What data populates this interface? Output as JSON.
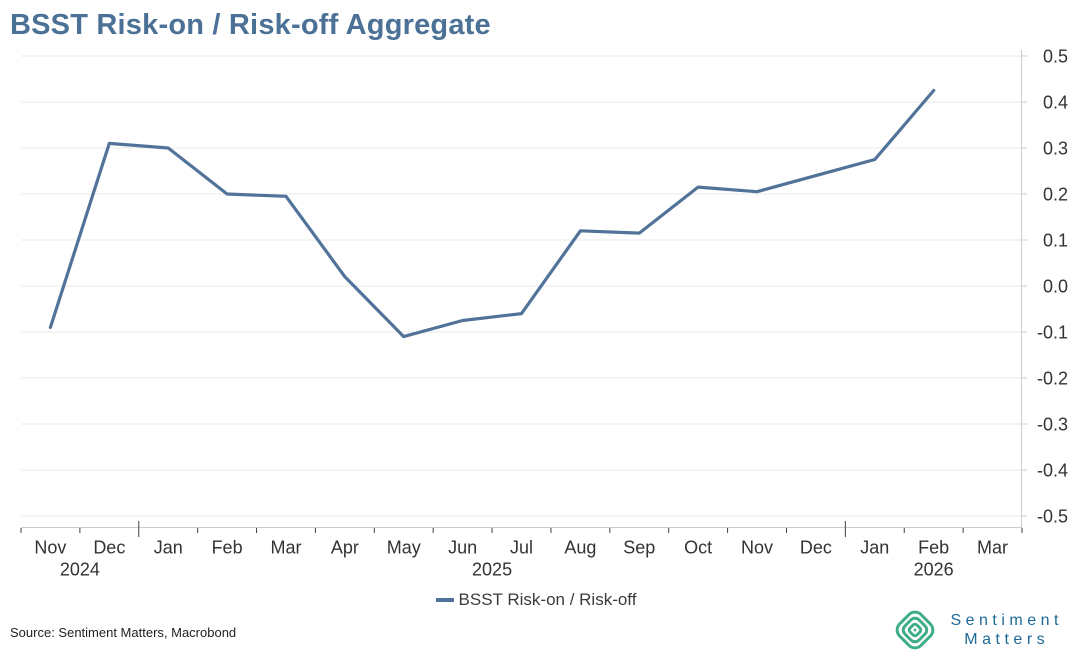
{
  "title": "BSST Risk-on / Risk-off Aggregate",
  "legend": {
    "label": "BSST Risk-on / Risk-off"
  },
  "source": "Source: Sentiment Matters, Macrobond",
  "logo": {
    "line1": "Sentiment",
    "line2": "Matters",
    "icon": "concentric-diamond-icon",
    "icon_color": "#3fae87",
    "text_color": "#1d6a96"
  },
  "colors": {
    "title": "#4b7196",
    "line": "#527399",
    "grid": "#eaeaea",
    "axis": "#cccccc",
    "y_tick": "#c9c9c9",
    "x_tick": "#3f3f3f",
    "tick_label": "#333333"
  },
  "chart_data": {
    "type": "line",
    "title": "BSST Risk-on / Risk-off Aggregate",
    "x_labels": [
      "Nov",
      "Dec",
      "Jan",
      "Feb",
      "Mar",
      "Apr",
      "May",
      "Jun",
      "Jul",
      "Aug",
      "Sep",
      "Oct",
      "Nov",
      "Dec",
      "Jan",
      "Feb",
      "Mar"
    ],
    "year_labels": [
      {
        "label": "2024",
        "center_boundary": 1
      },
      {
        "label": "2025",
        "center_boundary": 8
      },
      {
        "label": "2026",
        "center_boundary": 15.5
      }
    ],
    "year_tick_boundaries": [
      2,
      14
    ],
    "series": [
      {
        "name": "BSST Risk-on / Risk-off",
        "values": [
          -0.09,
          0.31,
          0.3,
          0.2,
          0.195,
          0.02,
          -0.11,
          -0.075,
          -0.06,
          0.12,
          0.115,
          0.215,
          0.205,
          0.24,
          0.275,
          0.425
        ]
      }
    ],
    "ylim": [
      -0.5,
      0.5
    ],
    "y_step": 0.1,
    "grid": true,
    "y_axis_side": "right",
    "legend_position": "bottom"
  }
}
